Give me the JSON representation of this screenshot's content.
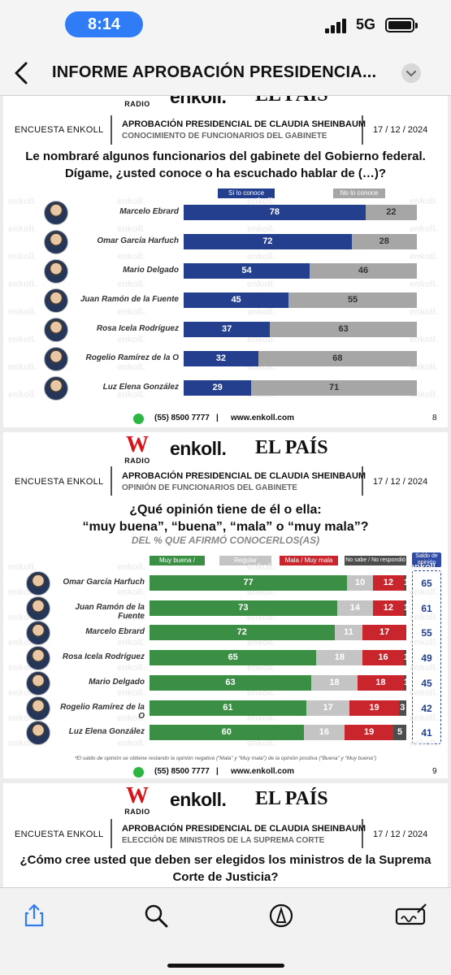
{
  "status_bar": {
    "time": "8:14",
    "network": "5G"
  },
  "nav": {
    "title": "INFORME APROBACIÓN PRESIDENCIA..."
  },
  "brand": {
    "w": "W",
    "radio": "RADIO",
    "enkoll": "enkoll.",
    "pais": "EL PAÍS",
    "watermark": "enkoll."
  },
  "slides": [
    {
      "survey": "ENCUESTA ENKOLL",
      "title": "APROBACIÓN PRESIDENCIAL DE CLAUDIA SHEINBAUM",
      "subtitle": "CONOCIMIENTO DE FUNCIONARIOS DEL GABINETE",
      "date": "17 / 12 / 2024",
      "question_1": "Le nombraré algunos funcionarios del gabinete del Gobierno federal.",
      "question_2": "Dígame, ¿usted conoce o ha escuchado hablar de (…)?",
      "legend": [
        "Sí lo conoce",
        "No lo conoce"
      ],
      "phone": "(55) 8500 7777",
      "sep": "|",
      "web": "www.enkoll.com",
      "page": "8"
    },
    {
      "survey": "ENCUESTA ENKOLL",
      "title": "APROBACIÓN PRESIDENCIAL DE CLAUDIA SHEINBAUM",
      "subtitle": "OPINIÓN DE FUNCIONARIOS DEL GABINETE",
      "date": "17 / 12 / 2024",
      "question_1": "¿Qué opinión tiene de él o ella:",
      "question_2": "“muy buena”, “buena”, “mala” o “muy mala”?",
      "note_sub": "DEL % QUE AFIRMÓ CONOCERLOS(AS)",
      "legend": [
        "Muy buena / Buena",
        "Regular",
        "Mala / Muy mala",
        "No sabe / No respondió"
      ],
      "saldo_header": "Saldo de opinión",
      "footnote": "*El saldo de opinión se obtiene restando la opinión negativa (“Mala” y “Muy mala”) de la opinión positiva (“Buena” y “Muy buena”)",
      "phone": "(55) 8500 7777",
      "sep": "|",
      "web": "www.enkoll.com",
      "page": "9"
    },
    {
      "survey": "ENCUESTA ENKOLL",
      "title": "APROBACIÓN PRESIDENCIAL DE CLAUDIA SHEINBAUM",
      "subtitle": "ELECCIÓN DE MINISTROS DE LA SUPREMA CORTE",
      "date": "17 / 12 / 2024",
      "question_1": "¿Cómo cree usted que deben ser elegidos los ministros de la Suprema",
      "question_2": "Corte de Justicia?"
    }
  ],
  "chart_data": [
    {
      "type": "bar",
      "orientation": "horizontal-stacked",
      "categories": [
        "Marcelo Ebrard",
        "Omar García Harfuch",
        "Mario Delgado",
        "Juan Ramón de la Fuente",
        "Rosa Icela Rodríguez",
        "Rogelio Ramírez de la O",
        "Luz Elena González"
      ],
      "series": [
        {
          "name": "Sí lo conoce",
          "color": "#253f8f",
          "values": [
            78,
            72,
            54,
            45,
            37,
            32,
            29
          ]
        },
        {
          "name": "No lo conoce",
          "color": "#a6a6a6",
          "values": [
            22,
            28,
            46,
            55,
            63,
            68,
            71
          ]
        }
      ]
    },
    {
      "type": "bar",
      "orientation": "horizontal-stacked",
      "categories": [
        "Omar García Harfuch",
        "Juan Ramón de la Fuente",
        "Marcelo Ebrard",
        "Rosa Icela Rodríguez",
        "Mario Delgado",
        "Rogelio Ramírez de la O",
        "Luz Elena González"
      ],
      "series": [
        {
          "name": "Muy buena / Buena",
          "color": "#3a8f45",
          "values": [
            77,
            73,
            72,
            65,
            63,
            61,
            60
          ]
        },
        {
          "name": "Regular",
          "color": "#c4c4c4",
          "values": [
            10,
            14,
            11,
            18,
            18,
            17,
            16
          ]
        },
        {
          "name": "Mala / Muy mala",
          "color": "#c8262c",
          "values": [
            12,
            12,
            17,
            16,
            18,
            19,
            19
          ]
        },
        {
          "name": "No sabe / No respondió",
          "color": "#4d4d4d",
          "values": [
            1,
            1,
            0,
            1,
            1,
            3,
            5
          ]
        }
      ],
      "saldo": [
        65,
        61,
        55,
        49,
        45,
        42,
        41
      ]
    }
  ]
}
